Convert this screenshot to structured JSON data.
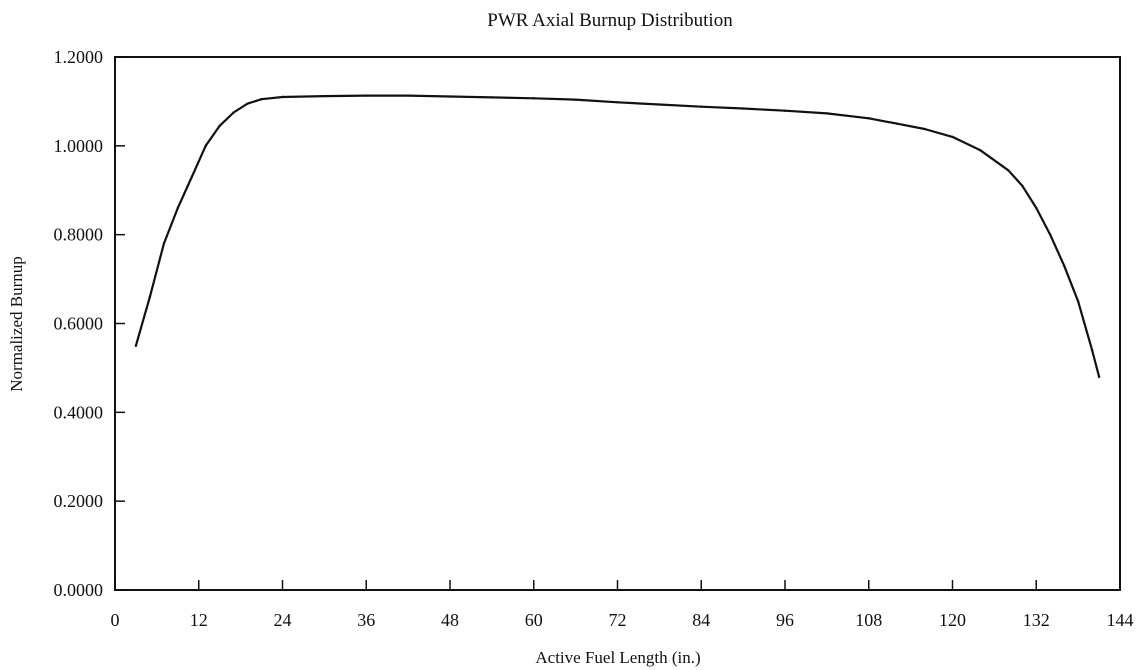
{
  "chart_data": {
    "type": "line",
    "title": "PWR Axial Burnup Distribution",
    "xlabel": "Active Fuel Length (in.)",
    "ylabel": "Normalized Burnup",
    "xlim": [
      0,
      144
    ],
    "ylim": [
      0,
      1.2
    ],
    "x_ticks": [
      "0",
      "12",
      "24",
      "36",
      "48",
      "60",
      "72",
      "84",
      "96",
      "108",
      "120",
      "132",
      "144"
    ],
    "y_ticks": [
      "0.0000",
      "0.2000",
      "0.4000",
      "0.6000",
      "0.8000",
      "1.0000",
      "1.2000"
    ],
    "grid": false,
    "legend": "none",
    "series": [
      {
        "color": "#111111",
        "x": [
          3,
          5,
          7,
          9,
          11,
          13,
          15,
          17,
          19,
          21,
          24,
          30,
          36,
          42,
          48,
          54,
          60,
          66,
          72,
          78,
          84,
          90,
          96,
          102,
          108,
          112,
          116,
          120,
          124,
          128,
          130,
          132,
          134,
          136,
          138,
          140,
          141
        ],
        "y": [
          0.55,
          0.66,
          0.78,
          0.86,
          0.93,
          1.0,
          1.045,
          1.075,
          1.095,
          1.105,
          1.11,
          1.112,
          1.113,
          1.113,
          1.111,
          1.109,
          1.107,
          1.104,
          1.098,
          1.093,
          1.088,
          1.084,
          1.079,
          1.073,
          1.062,
          1.05,
          1.038,
          1.02,
          0.99,
          0.945,
          0.91,
          0.86,
          0.8,
          0.73,
          0.65,
          0.54,
          0.48
        ]
      }
    ]
  }
}
